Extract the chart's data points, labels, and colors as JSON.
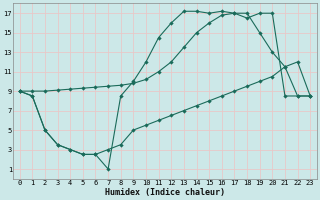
{
  "xlabel": "Humidex (Indice chaleur)",
  "bg_color": "#cce8e8",
  "grid_color": "#e8c8c8",
  "line_color": "#1a6b5a",
  "xlim": [
    -0.5,
    23.5
  ],
  "ylim": [
    0,
    18
  ],
  "xticks": [
    0,
    1,
    2,
    3,
    4,
    5,
    6,
    7,
    8,
    9,
    10,
    11,
    12,
    13,
    14,
    15,
    16,
    17,
    18,
    19,
    20,
    21,
    22,
    23
  ],
  "yticks": [
    1,
    3,
    5,
    7,
    9,
    11,
    13,
    15,
    17
  ],
  "line1_x": [
    0,
    1,
    2,
    3,
    4,
    5,
    6,
    7,
    8,
    9,
    10,
    11,
    12,
    13,
    14,
    15,
    16,
    17,
    18,
    19,
    20,
    21,
    22,
    23
  ],
  "line1_y": [
    9,
    8.5,
    5,
    3.5,
    3.0,
    2.5,
    2.5,
    1.0,
    8.5,
    10.0,
    12.0,
    14.5,
    16.0,
    17.2,
    17.2,
    17.0,
    17.2,
    17.0,
    17.0,
    15.0,
    13.0,
    11.5,
    8.5,
    8.5
  ],
  "line2_x": [
    0,
    1,
    2,
    3,
    4,
    5,
    6,
    7,
    8,
    9,
    10,
    11,
    12,
    13,
    14,
    15,
    16,
    17,
    18,
    19,
    20,
    21,
    22,
    23
  ],
  "line2_y": [
    9,
    9.0,
    9.0,
    9.1,
    9.2,
    9.3,
    9.4,
    9.5,
    9.6,
    9.8,
    10.2,
    11.0,
    12.0,
    13.5,
    15.0,
    16.0,
    16.8,
    17.0,
    16.5,
    17.0,
    17.0,
    8.5,
    8.5,
    8.5
  ],
  "line3_x": [
    0,
    1,
    2,
    3,
    4,
    5,
    6,
    7,
    8,
    9,
    10,
    11,
    12,
    13,
    14,
    15,
    16,
    17,
    18,
    19,
    20,
    21,
    22,
    23
  ],
  "line3_y": [
    9,
    8.5,
    5.0,
    3.5,
    3.0,
    2.5,
    2.5,
    3.0,
    3.5,
    5.0,
    5.5,
    6.0,
    6.5,
    7.0,
    7.5,
    8.0,
    8.5,
    9.0,
    9.5,
    10.0,
    10.5,
    11.5,
    12.0,
    8.5
  ]
}
